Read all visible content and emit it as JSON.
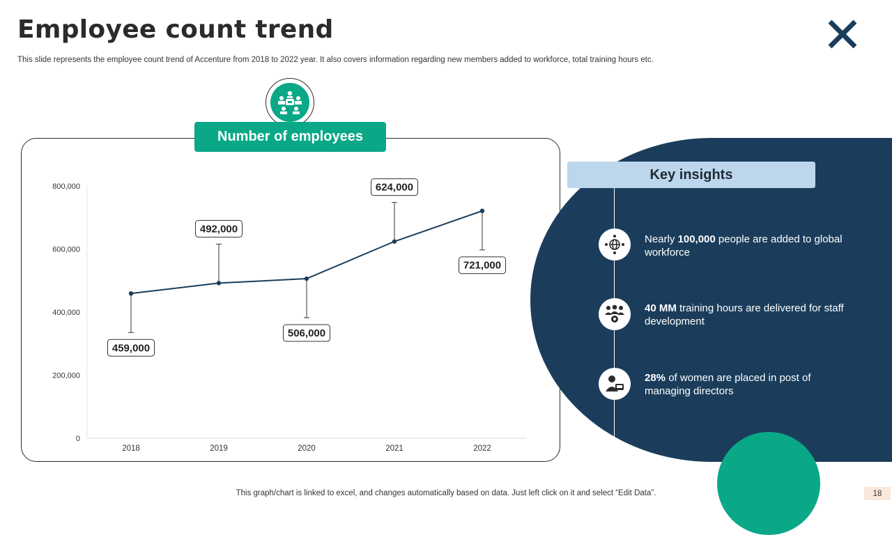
{
  "slide": {
    "title": "Employee count trend",
    "subtitle": "This slide represents the employee count trend of Accenture from 2018 to 2022 year.  It also covers information regarding new members added to workforce, total training hours etc.",
    "footer": "This graph/chart is linked to excel,  and changes automatically based on data. Just left click on it and select “Edit Data”.",
    "page_number": "18",
    "close_icon": "close-x-icon"
  },
  "colors": {
    "accent_green": "#0aa887",
    "navy": "#1b3d5b",
    "light_blue": "#bcd6ec",
    "line": "#1b3d5b"
  },
  "chart_panel": {
    "header_label": "Number of employees",
    "header_icon": "people-group-icon"
  },
  "chart_data": {
    "type": "line",
    "categories": [
      "2018",
      "2019",
      "2020",
      "2021",
      "2022"
    ],
    "values": [
      459000,
      492000,
      506000,
      624000,
      721000
    ],
    "data_labels": [
      "459,000",
      "492,000",
      "506,000",
      "624,000",
      "721,000"
    ],
    "label_position": [
      "below",
      "above",
      "below",
      "above",
      "below"
    ],
    "ylim": [
      0,
      800000
    ],
    "y_ticks": [
      0,
      200000,
      400000,
      600000,
      800000
    ],
    "y_tick_labels": [
      "0",
      "200,000",
      "400,000",
      "600,000",
      "800,000"
    ],
    "title": "",
    "xlabel": "",
    "ylabel": "",
    "grid": false,
    "legend": "none"
  },
  "insights": {
    "header": "Key insights",
    "items": [
      {
        "icon": "globe-network-icon",
        "bold": "100,000",
        "before": "Nearly ",
        "after": " people are added to global workforce"
      },
      {
        "icon": "team-training-icon",
        "bold": "40 MM",
        "before": "",
        "after": " training hours are delivered for staff development"
      },
      {
        "icon": "woman-director-icon",
        "bold": "28%",
        "before": "",
        "after": " of women are placed in post of managing directors"
      }
    ]
  }
}
